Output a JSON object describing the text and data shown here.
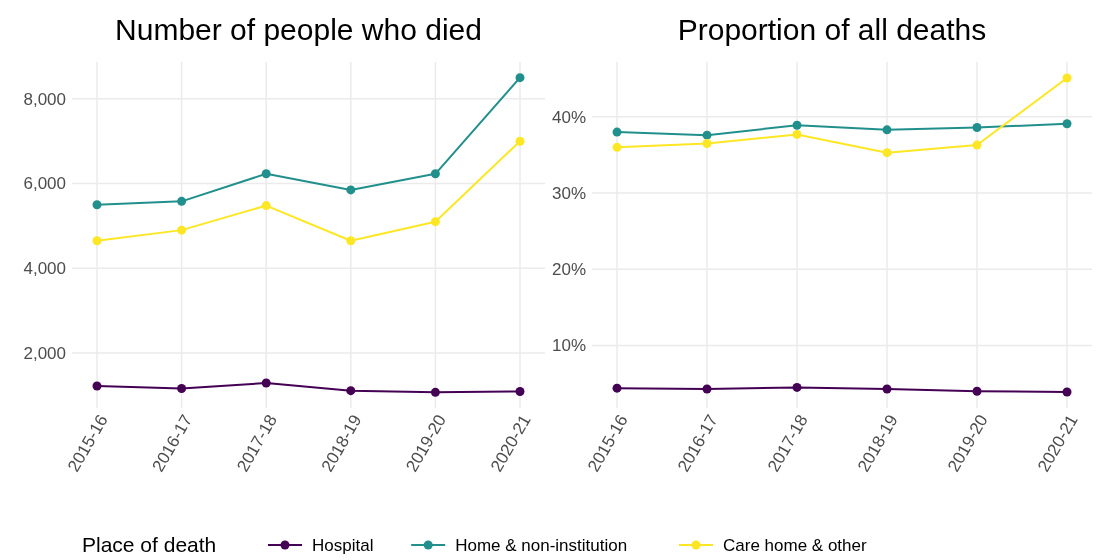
{
  "chart_data": [
    {
      "type": "line",
      "title": "Number of people who died",
      "categories": [
        "2015-16",
        "2016-17",
        "2017-18",
        "2018-19",
        "2019-20",
        "2020-21"
      ],
      "series": [
        {
          "color": "#440154",
          "values": [
            1220,
            1160,
            1290,
            1110,
            1070,
            1090
          ]
        },
        {
          "color": "#21908c",
          "values": [
            5500,
            5580,
            6230,
            5850,
            6230,
            8500
          ]
        },
        {
          "color": "#fde725",
          "values": [
            4650,
            4900,
            5480,
            4650,
            5100,
            7000
          ]
        }
      ],
      "ylim": [
        700,
        8870
      ],
      "yticks": [
        {
          "value": 2000,
          "label": "2,000"
        },
        {
          "value": 4000,
          "label": "4,000"
        },
        {
          "value": 6000,
          "label": "6,000"
        },
        {
          "value": 8000,
          "label": "8,000"
        }
      ],
      "grid": true,
      "marker": "circle",
      "legend": false
    },
    {
      "type": "line",
      "title": "Proportion of all deaths",
      "categories": [
        "2015-16",
        "2016-17",
        "2017-18",
        "2018-19",
        "2019-20",
        "2020-21"
      ],
      "legend_title": "Place of death",
      "series": [
        {
          "name": "Hospital",
          "color": "#440154",
          "values": [
            4.4,
            4.3,
            4.5,
            4.3,
            4.0,
            3.9
          ]
        },
        {
          "name": "Home & non-institution",
          "color": "#21908c",
          "values": [
            38.0,
            37.6,
            38.9,
            38.3,
            38.6,
            39.1
          ]
        },
        {
          "name": "Care home & other",
          "color": "#fde725",
          "values": [
            36.0,
            36.5,
            37.7,
            35.3,
            36.3,
            45.1
          ]
        }
      ],
      "ylim": [
        1.8,
        47.2
      ],
      "yticks": [
        {
          "value": 10,
          "label": "10%"
        },
        {
          "value": 20,
          "label": "20%"
        },
        {
          "value": 30,
          "label": "30%"
        },
        {
          "value": 40,
          "label": "40%"
        }
      ],
      "grid": true,
      "marker": "circle",
      "legend": "bottom"
    }
  ]
}
